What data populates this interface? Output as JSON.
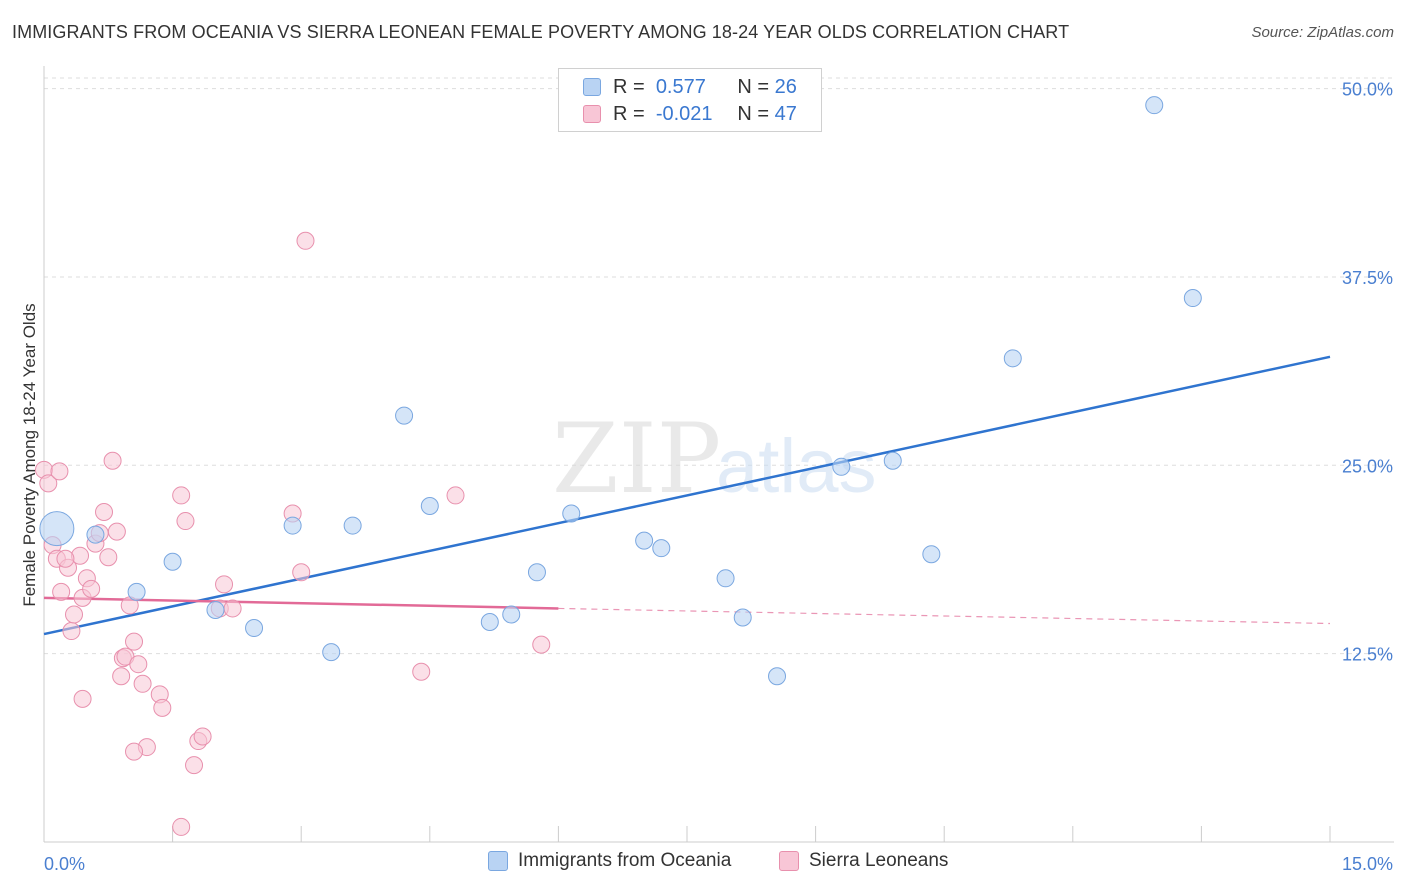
{
  "title": "IMMIGRANTS FROM OCEANIA VS SIERRA LEONEAN FEMALE POVERTY AMONG 18-24 YEAR OLDS CORRELATION CHART",
  "source": "Source: ZipAtlas.com",
  "watermark": {
    "zip": "ZIP",
    "atlas": "atlas"
  },
  "legend": {
    "rows": [
      {
        "r_label": "R =",
        "r_value": "0.577",
        "n_label": "N =",
        "n_value": "26"
      },
      {
        "r_label": "R =",
        "r_value": "-0.021",
        "n_label": "N =",
        "n_value": "47"
      }
    ]
  },
  "colors": {
    "blue_fill": "#b9d3f3",
    "blue_stroke": "#7aa7e0",
    "blue_line": "#2f74cf",
    "pink_fill": "#f8c6d6",
    "pink_stroke": "#e890ad",
    "pink_line": "#e26a97",
    "axis_text": "#4a7fd0",
    "grid": "#dddddd"
  },
  "chart_data": {
    "type": "scatter",
    "title": "IMMIGRANTS FROM OCEANIA VS SIERRA LEONEAN FEMALE POVERTY AMONG 18-24 YEAR OLDS CORRELATION CHART",
    "xlabel": "",
    "ylabel": "Female Poverty Among 18-24 Year Olds",
    "xlim": [
      0,
      15
    ],
    "ylim": [
      0,
      51.5
    ],
    "x_tick_labels": [
      "0.0%",
      "15.0%"
    ],
    "y_ticks": [
      12.5,
      25.0,
      37.5,
      50.0
    ],
    "y_tick_labels": [
      "12.5%",
      "25.0%",
      "37.5%",
      "50.0%"
    ],
    "series": [
      {
        "name": "Immigrants from Oceania",
        "color": "blue",
        "points": [
          {
            "x": 0.15,
            "y": 20.8,
            "big": true
          },
          {
            "x": 0.6,
            "y": 20.4
          },
          {
            "x": 1.08,
            "y": 16.6
          },
          {
            "x": 1.5,
            "y": 18.6
          },
          {
            "x": 2.0,
            "y": 15.4
          },
          {
            "x": 2.45,
            "y": 14.2
          },
          {
            "x": 2.9,
            "y": 21.0
          },
          {
            "x": 3.35,
            "y": 12.6
          },
          {
            "x": 3.6,
            "y": 21.0
          },
          {
            "x": 4.2,
            "y": 28.3
          },
          {
            "x": 4.5,
            "y": 22.3
          },
          {
            "x": 5.2,
            "y": 14.6
          },
          {
            "x": 5.45,
            "y": 15.1
          },
          {
            "x": 5.75,
            "y": 17.9
          },
          {
            "x": 6.15,
            "y": 21.8
          },
          {
            "x": 7.0,
            "y": 20.0
          },
          {
            "x": 7.2,
            "y": 19.5
          },
          {
            "x": 7.95,
            "y": 17.5
          },
          {
            "x": 8.15,
            "y": 14.9
          },
          {
            "x": 8.55,
            "y": 11.0
          },
          {
            "x": 9.3,
            "y": 24.9
          },
          {
            "x": 9.9,
            "y": 25.3
          },
          {
            "x": 10.35,
            "y": 19.1
          },
          {
            "x": 11.3,
            "y": 32.1
          },
          {
            "x": 12.95,
            "y": 48.9
          },
          {
            "x": 13.4,
            "y": 36.1
          }
        ],
        "trend": {
          "x": [
            0,
            15
          ],
          "y": [
            13.8,
            32.2
          ]
        }
      },
      {
        "name": "Sierra Leoneans",
        "color": "pink",
        "points": [
          {
            "x": 0.0,
            "y": 24.7
          },
          {
            "x": 0.05,
            "y": 23.8
          },
          {
            "x": 0.18,
            "y": 24.6
          },
          {
            "x": 0.1,
            "y": 19.7
          },
          {
            "x": 0.15,
            "y": 18.8
          },
          {
            "x": 0.2,
            "y": 16.6
          },
          {
            "x": 0.28,
            "y": 18.2
          },
          {
            "x": 0.32,
            "y": 14.0
          },
          {
            "x": 0.35,
            "y": 15.1
          },
          {
            "x": 0.42,
            "y": 19.0
          },
          {
            "x": 0.45,
            "y": 16.2
          },
          {
            "x": 0.5,
            "y": 17.5
          },
          {
            "x": 0.55,
            "y": 16.8
          },
          {
            "x": 0.6,
            "y": 19.8
          },
          {
            "x": 0.65,
            "y": 20.5
          },
          {
            "x": 0.7,
            "y": 21.9
          },
          {
            "x": 0.75,
            "y": 18.9
          },
          {
            "x": 0.8,
            "y": 25.3
          },
          {
            "x": 0.85,
            "y": 20.6
          },
          {
            "x": 0.9,
            "y": 11.0
          },
          {
            "x": 0.92,
            "y": 12.2
          },
          {
            "x": 0.95,
            "y": 12.3
          },
          {
            "x": 1.0,
            "y": 15.7
          },
          {
            "x": 1.05,
            "y": 13.3
          },
          {
            "x": 1.1,
            "y": 11.8
          },
          {
            "x": 1.15,
            "y": 10.5
          },
          {
            "x": 1.2,
            "y": 6.3
          },
          {
            "x": 1.35,
            "y": 9.8
          },
          {
            "x": 1.38,
            "y": 8.9
          },
          {
            "x": 1.05,
            "y": 6.0
          },
          {
            "x": 1.6,
            "y": 23.0
          },
          {
            "x": 1.65,
            "y": 21.3
          },
          {
            "x": 1.6,
            "y": 1.0
          },
          {
            "x": 1.8,
            "y": 6.7
          },
          {
            "x": 1.85,
            "y": 7.0
          },
          {
            "x": 1.75,
            "y": 5.1
          },
          {
            "x": 2.05,
            "y": 15.5
          },
          {
            "x": 2.1,
            "y": 17.1
          },
          {
            "x": 2.2,
            "y": 15.5
          },
          {
            "x": 2.9,
            "y": 21.8
          },
          {
            "x": 3.0,
            "y": 17.9
          },
          {
            "x": 3.05,
            "y": 39.9
          },
          {
            "x": 4.4,
            "y": 11.3
          },
          {
            "x": 4.8,
            "y": 23.0
          },
          {
            "x": 5.8,
            "y": 13.1
          },
          {
            "x": 0.45,
            "y": 9.5
          },
          {
            "x": 0.25,
            "y": 18.8
          }
        ],
        "trend_solid": {
          "x": [
            0,
            6.0
          ],
          "y": [
            16.2,
            15.5
          ]
        },
        "trend_dashed": {
          "x": [
            6.0,
            15
          ],
          "y": [
            15.5,
            14.5
          ]
        }
      }
    ]
  }
}
